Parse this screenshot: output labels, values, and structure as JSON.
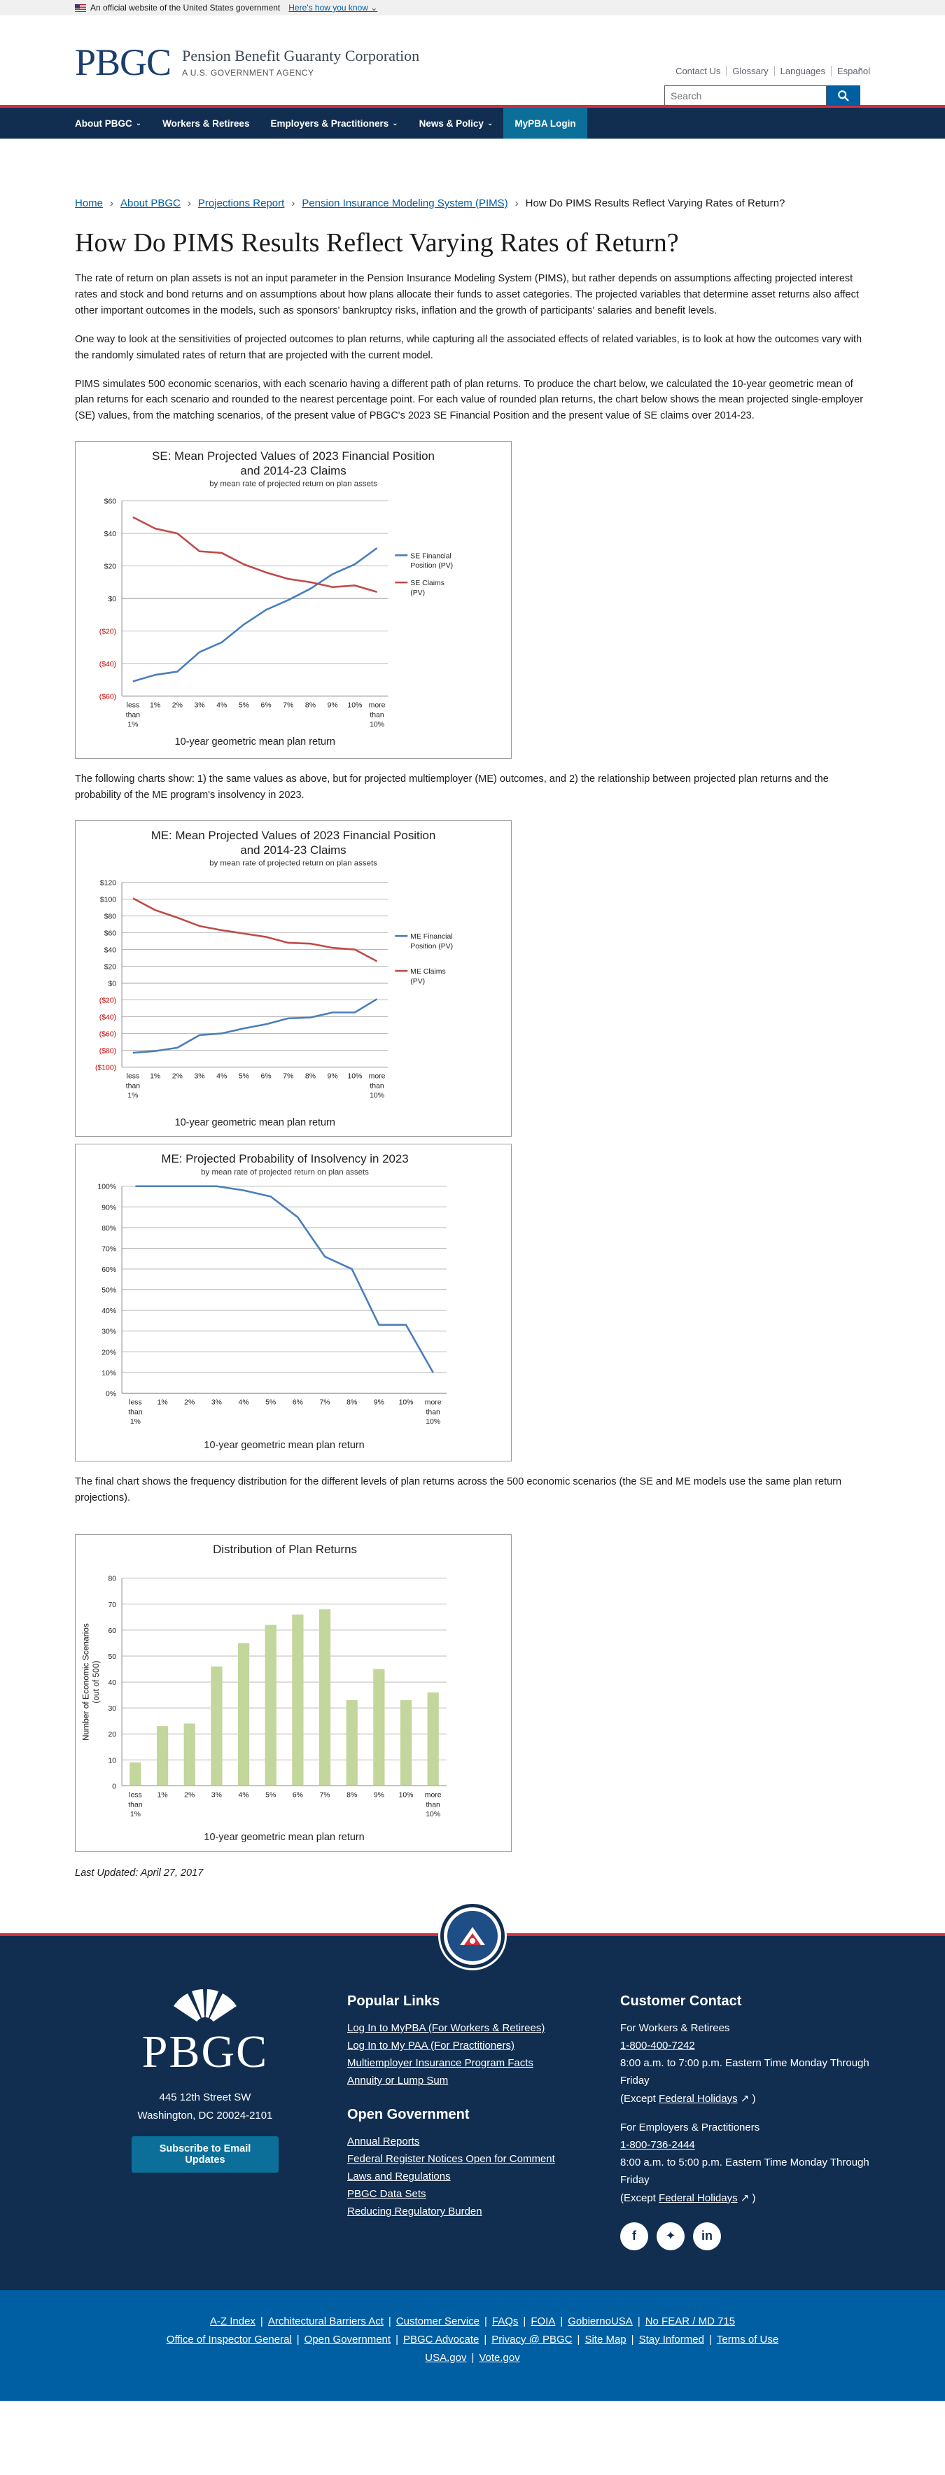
{
  "gov_banner": {
    "text": "An official website of the United States government",
    "link": "Here's how you know"
  },
  "header": {
    "logo_letters": "PBGC",
    "org_name": "Pension Benefit Guaranty Corporation",
    "agency": "A U.S. GOVERNMENT AGENCY",
    "util_links": [
      "Contact Us",
      "Glossary",
      "Languages",
      "Español"
    ],
    "search_placeholder": "Search"
  },
  "nav": {
    "items": [
      {
        "label": "About PBGC",
        "chevron": true
      },
      {
        "label": "Workers & Retirees",
        "chevron": false
      },
      {
        "label": "Employers & Practitioners",
        "chevron": true
      },
      {
        "label": "News & Policy",
        "chevron": true
      }
    ],
    "login": "MyPBA Login"
  },
  "breadcrumb": [
    "Home",
    "About PBGC",
    "Projections Report",
    "Pension Insurance Modeling System (PIMS)"
  ],
  "breadcrumb_current": "How Do PIMS Results Reflect Varying Rates of Return?",
  "title": "How Do PIMS Results Reflect Varying Rates of Return?",
  "paragraphs": {
    "p1": "The rate of return on plan assets is not an input parameter in the Pension Insurance Modeling System (PIMS), but rather depends on assumptions affecting projected interest rates and stock and bond returns and on assumptions about how plans allocate their funds to asset categories. The projected variables that determine asset returns also affect other important outcomes in the models, such as sponsors' bankruptcy risks, inflation and the growth of participants' salaries and benefit levels.",
    "p2": "One way to look at the sensitivities of projected outcomes to plan returns, while capturing all the associated effects of related variables, is to look at how the outcomes vary with the randomly simulated rates of return that are projected with the current model.",
    "p3": "PIMS simulates 500 economic scenarios, with each scenario having a different path of plan returns. To produce the chart below, we calculated the 10-year geometric mean of plan returns for each scenario and rounded to the nearest percentage point. For each value of rounded plan returns, the chart below shows the mean projected single-employer (SE) values, from the matching scenarios, of the present value of PBGC's 2023 SE Financial Position and the present value of SE claims over 2014-23.",
    "p4": "The following charts show: 1) the same values as above, but for projected multiemployer (ME) outcomes, and 2) the relationship between projected plan returns and the probability of the ME program's insolvency in 2023.",
    "p5": "The final chart shows the frequency distribution for the different levels of plan returns across the 500 economic scenarios (the SE and ME models use the same plan return projections)."
  },
  "chart_data": [
    {
      "type": "line",
      "title": "SE: Mean Projected Values of 2023 Financial Position|and 2014-23 Claims",
      "subtitle": "by mean rate of projected return on plan assets",
      "xlabel": "10-year geometric mean plan return",
      "ylabel": "",
      "categories": [
        "less than 1%",
        "1%",
        "2%",
        "3%",
        "4%",
        "5%",
        "6%",
        "7%",
        "8%",
        "9%",
        "10%",
        "more than 10%"
      ],
      "ylim": [
        -60,
        60
      ],
      "yticks": [
        60,
        40,
        20,
        0,
        -20,
        -40,
        -60
      ],
      "ytick_labels": [
        "$60",
        "$40",
        "$20",
        "$0",
        "($20)",
        "($40)",
        "($60)"
      ],
      "grid": true,
      "legend": "right",
      "series": [
        {
          "name": "SE Financial Position (PV)",
          "color": "#4a7ebb",
          "values": [
            -51,
            -47,
            -45,
            -33,
            -27,
            -16,
            -7,
            -1,
            6,
            15,
            21,
            31
          ]
        },
        {
          "name": "SE Claims (PV)",
          "color": "#be4b48",
          "values": [
            50,
            43,
            40,
            29,
            28,
            21,
            16,
            12,
            10,
            7,
            8,
            4
          ]
        }
      ]
    },
    {
      "type": "line",
      "title": "ME: Mean Projected Values of 2023 Financial Position|and 2014-23 Claims",
      "subtitle": "by mean rate of projected return on plan assets",
      "xlabel": "10-year geometric mean plan return",
      "ylabel": "",
      "categories": [
        "less than 1%",
        "1%",
        "2%",
        "3%",
        "4%",
        "5%",
        "6%",
        "7%",
        "8%",
        "9%",
        "10%",
        "more than 10%"
      ],
      "ylim": [
        -100,
        120
      ],
      "yticks": [
        120,
        100,
        80,
        60,
        40,
        20,
        0,
        -20,
        -40,
        -60,
        -80,
        -100
      ],
      "ytick_labels": [
        "$120",
        "$100",
        "$80",
        "$60",
        "$40",
        "$20",
        "$0",
        "($20)",
        "($40)",
        "($60)",
        "($80)",
        "($100)"
      ],
      "grid": true,
      "legend": "right",
      "series": [
        {
          "name": "ME Financial Position (PV)",
          "color": "#4a7ebb",
          "values": [
            -83,
            -81,
            -77,
            -62,
            -60,
            -54,
            -49,
            -42,
            -41,
            -35,
            -35,
            -19
          ]
        },
        {
          "name": "ME Claims (PV)",
          "color": "#be4b48",
          "values": [
            101,
            87,
            78,
            68,
            63,
            59,
            55,
            48,
            47,
            42,
            40,
            26
          ]
        }
      ]
    },
    {
      "type": "line",
      "title": "ME: Projected Probability of Insolvency in 2023",
      "subtitle": "by mean rate of projected return on plan assets",
      "xlabel": "10-year geometric mean plan return",
      "ylabel": "",
      "categories": [
        "less than 1%",
        "1%",
        "2%",
        "3%",
        "4%",
        "5%",
        "6%",
        "7%",
        "8%",
        "9%",
        "10%",
        "more than 10%"
      ],
      "ylim": [
        0,
        100
      ],
      "yticks": [
        100,
        90,
        80,
        70,
        60,
        50,
        40,
        30,
        20,
        10,
        0
      ],
      "ytick_labels": [
        "100%",
        "90%",
        "80%",
        "70%",
        "60%",
        "50%",
        "40%",
        "30%",
        "20%",
        "10%",
        "0%"
      ],
      "grid": true,
      "legend": "none",
      "series": [
        {
          "name": "",
          "color": "#4a7ebb",
          "values": [
            100,
            100,
            100,
            100,
            98,
            95,
            85,
            66,
            60,
            33,
            33,
            10
          ]
        }
      ]
    },
    {
      "type": "bar",
      "title": "Distribution of Plan Returns",
      "subtitle": "",
      "xlabel": "10-year geometric mean plan return",
      "ylabel": "Number of Economic Scenarios|(out of 500)",
      "categories": [
        "less than 1%",
        "1%",
        "2%",
        "3%",
        "4%",
        "5%",
        "6%",
        "7%",
        "8%",
        "9%",
        "10%",
        "more than 10%"
      ],
      "ylim": [
        0,
        80
      ],
      "yticks": [
        80,
        70,
        60,
        50,
        40,
        30,
        20,
        10,
        0
      ],
      "ytick_labels": [
        "80",
        "70",
        "60",
        "50",
        "40",
        "30",
        "20",
        "10",
        "0"
      ],
      "grid": true,
      "legend": "none",
      "series": [
        {
          "name": "",
          "color": "#c3d69b",
          "values": [
            9,
            23,
            24,
            46,
            55,
            62,
            66,
            68,
            33,
            45,
            33,
            36
          ]
        }
      ]
    }
  ],
  "last_updated": "Last Updated: April 27, 2017",
  "footer": {
    "logo_letters": "PBGC",
    "address_line1": "445 12th Street SW",
    "address_line2": "Washington, DC 20024-2101",
    "subscribe": "Subscribe to Email Updates",
    "popular_title": "Popular Links",
    "popular_links": [
      "Log In to MyPBA (For Workers & Retirees)",
      "Log In to My PAA (For Practitioners)",
      "Multiemployer Insurance Program Facts",
      "Annuity or Lump Sum"
    ],
    "open_gov_title": "Open Government",
    "open_gov_links": [
      "Annual Reports",
      "Federal Register Notices Open for Comment",
      "Laws and Regulations",
      "PBGC Data Sets",
      "Reducing Regulatory Burden"
    ],
    "contact_title": "Customer Contact",
    "workers_label": "For Workers & Retirees",
    "workers_phone": "1-800-400-7242",
    "workers_hours": "8:00 a.m. to 7:00 p.m. Eastern Time Monday Through Friday",
    "workers_except_pre": "(Except",
    "holidays": "Federal Holidays",
    "except_post": ")",
    "employers_label": "For Employers & Practitioners",
    "employers_phone": "1-800-736-2444",
    "employers_hours": "8:00 a.m. to 5:00 p.m. Eastern Time Monday Through Friday",
    "employers_except_pre": "(Except",
    "social": [
      "facebook-icon",
      "twitter-icon",
      "linkedin-icon"
    ],
    "bottom_row1": [
      "A-Z Index",
      "Architectural Barriers Act",
      "Customer Service",
      "FAQs",
      "FOIA",
      "GobiernoUSA",
      "No FEAR / MD 715"
    ],
    "bottom_row2": [
      "Office of Inspector General",
      "Open Government",
      "PBGC Advocate",
      "Privacy @ PBGC",
      "Site Map",
      "Stay Informed",
      "Terms of Use"
    ],
    "bottom_row3": [
      "USA.gov",
      "Vote.gov"
    ]
  }
}
